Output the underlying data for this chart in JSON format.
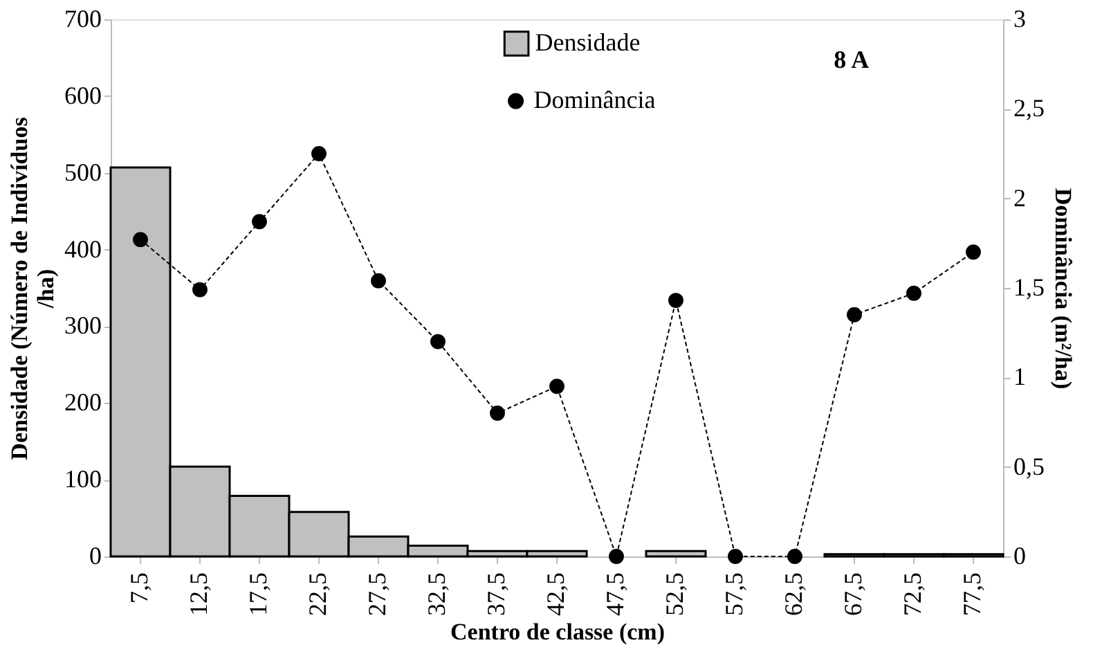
{
  "chart_data": {
    "type": "bar",
    "xlabel": "Centro de classe (cm)",
    "ylabel": "Densidade (Número de Indivíduos /ha)",
    "y2label": "Dominância (m²/ha)",
    "annotations": [
      "8 A"
    ],
    "categories": [
      "7,5",
      "12,5",
      "17,5",
      "22,5",
      "27,5",
      "32,5",
      "37,5",
      "42,5",
      "47,5",
      "52,5",
      "57,5",
      "62,5",
      "67,5",
      "72,5",
      "77,5"
    ],
    "series": [
      {
        "name": "Densidade",
        "color": "#c0c0c0",
        "values": [
          507,
          117,
          79,
          58,
          26,
          14,
          7,
          7,
          0,
          7,
          0,
          0,
          3,
          3,
          3
        ]
      },
      {
        "name": "Dominância",
        "type": "line",
        "axis": "y2",
        "color": "#000000",
        "line_style": "dashed",
        "marker": "circle",
        "values": [
          1.77,
          1.49,
          1.87,
          2.25,
          1.54,
          1.2,
          0.8,
          0.95,
          0,
          1.43,
          0,
          0,
          1.35,
          1.47,
          1.7
        ]
      }
    ],
    "ylim": [
      0,
      700
    ],
    "yticks": [
      0,
      100,
      200,
      300,
      400,
      500,
      600,
      700
    ],
    "y2lim": [
      0,
      3
    ],
    "y2ticks": [
      0,
      {
        "value": 0.5,
        "label": "0,5"
      },
      1,
      {
        "value": 1.5,
        "label": "1,5"
      },
      2,
      {
        "value": 2.5,
        "label": "2,5"
      },
      3
    ],
    "grid": false,
    "legend": "top"
  }
}
